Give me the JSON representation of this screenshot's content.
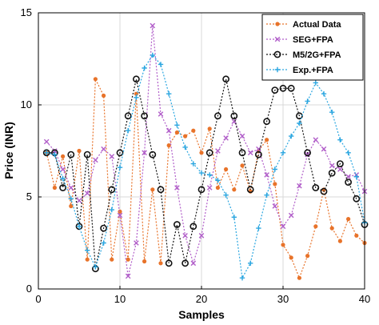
{
  "chart_data": {
    "type": "line",
    "title": "",
    "xlabel": "Samples",
    "ylabel": "Price (INR)",
    "xlim": [
      0,
      40
    ],
    "ylim": [
      0,
      15
    ],
    "xticks": [
      0,
      10,
      20,
      30,
      40
    ],
    "yticks": [
      0,
      5,
      10,
      15
    ],
    "grid": true,
    "legend_position": "top-right",
    "x": [
      1,
      2,
      3,
      4,
      5,
      6,
      7,
      8,
      9,
      10,
      11,
      12,
      13,
      14,
      15,
      16,
      17,
      18,
      19,
      20,
      21,
      22,
      23,
      24,
      25,
      26,
      27,
      28,
      29,
      30,
      31,
      32,
      33,
      34,
      35,
      36,
      37,
      38,
      39,
      40
    ],
    "series": [
      {
        "name": "Actual Data",
        "color": "#e8732a",
        "marker": "dot",
        "values": [
          7.4,
          5.5,
          7.2,
          4.5,
          7.5,
          1.6,
          11.4,
          10.5,
          1.6,
          4.2,
          1.6,
          10.6,
          1.5,
          5.4,
          1.4,
          7.8,
          8.5,
          8.3,
          8.6,
          7.4,
          8.7,
          5.5,
          6.5,
          5.4,
          6.7,
          5.3,
          7.5,
          8.1,
          5.7,
          2.4,
          1.7,
          0.6,
          1.8,
          3.4,
          5.4,
          3.3,
          2.6,
          3.8,
          2.9,
          2.5
        ]
      },
      {
        "name": "SEG+FPA",
        "color": "#b15ec9",
        "marker": "x",
        "values": [
          8.0,
          7.5,
          6.5,
          5.5,
          4.8,
          5.2,
          7.0,
          7.6,
          7.2,
          4.0,
          0.7,
          2.5,
          7.4,
          14.3,
          9.5,
          8.6,
          5.5,
          2.9,
          1.4,
          2.9,
          5.5,
          7.5,
          8.2,
          9.1,
          8.3,
          7.4,
          7.6,
          6.2,
          4.5,
          3.4,
          4.0,
          5.6,
          7.3,
          8.1,
          7.6,
          6.7,
          6.5,
          6.1,
          6.2,
          5.3
        ]
      },
      {
        "name": "M5/2G+FPA",
        "color": "#111111",
        "marker": "circle",
        "values": [
          7.4,
          7.4,
          5.5,
          7.3,
          3.4,
          7.3,
          1.1,
          3.3,
          5.4,
          7.4,
          9.4,
          11.4,
          9.4,
          7.3,
          5.4,
          1.4,
          3.5,
          1.4,
          3.4,
          5.4,
          7.4,
          9.4,
          11.4,
          9.4,
          7.4,
          5.4,
          7.3,
          9.1,
          10.8,
          10.9,
          10.9,
          9.4,
          7.4,
          5.5,
          5.3,
          6.3,
          6.8,
          5.8,
          4.9,
          3.5
        ]
      },
      {
        "name": "Exp.+FPA",
        "color": "#2aa6e0",
        "marker": "plus",
        "values": [
          7.4,
          7.3,
          6.0,
          4.9,
          3.4,
          2.1,
          1.2,
          2.5,
          4.3,
          6.6,
          8.6,
          10.4,
          12.0,
          12.7,
          12.2,
          10.6,
          8.9,
          7.7,
          6.8,
          6.3,
          6.2,
          5.9,
          5.1,
          3.9,
          0.6,
          1.4,
          3.3,
          5.1,
          6.5,
          7.4,
          8.3,
          9.0,
          10.2,
          11.2,
          10.6,
          9.6,
          8.1,
          7.4,
          6.1,
          3.6
        ]
      }
    ]
  }
}
